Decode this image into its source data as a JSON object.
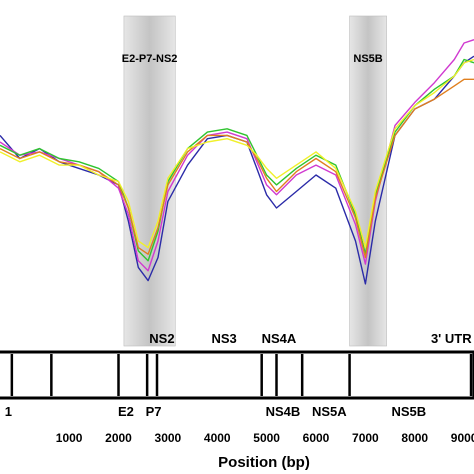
{
  "chart_data": {
    "type": "line",
    "xlabel": "Position (bp)",
    "xlim": [
      -400,
      9200
    ],
    "ylim": [
      0,
      1
    ],
    "x_ticks": [
      1000,
      2000,
      3000,
      4000,
      5000,
      6000,
      7000,
      8000,
      9000
    ],
    "x_tick_labels": [
      "1000",
      "2000",
      "3000",
      "4000",
      "5000",
      "6000",
      "7000",
      "8000",
      "9000"
    ],
    "highlight_bands": [
      {
        "label": "E2-P7-NS2",
        "x_start": 2110,
        "x_end": 3150
      },
      {
        "label": "NS5B",
        "x_start": 6680,
        "x_end": 7430
      }
    ],
    "genome_boundaries": [
      -160,
      640,
      2000,
      2580,
      2780,
      4900,
      5200,
      5720,
      6680,
      9140
    ],
    "gene_labels_top": [
      {
        "text": "NS2",
        "x": 2880
      },
      {
        "text": "NS3",
        "x": 4140
      },
      {
        "text": "NS4A",
        "x": 5250
      },
      {
        "text": "3' UTR",
        "x": 8740
      }
    ],
    "gene_labels_bottom": [
      {
        "text": "1",
        "x": -230
      },
      {
        "text": "E2",
        "x": 2150
      },
      {
        "text": "P7",
        "x": 2710
      },
      {
        "text": "NS4B",
        "x": 5330
      },
      {
        "text": "NS5A",
        "x": 6270
      },
      {
        "text": "NS5B",
        "x": 7880
      }
    ],
    "series": [
      {
        "color": "#2b2ba8",
        "x": [
          -400,
          0,
          400,
          800,
          1200,
          1600,
          2000,
          2200,
          2400,
          2600,
          2800,
          3000,
          3400,
          3800,
          4200,
          4600,
          4800,
          5000,
          5200,
          5600,
          6000,
          6400,
          6800,
          7000,
          7200,
          7600,
          8000,
          8400,
          8800,
          9000,
          9200
        ],
        "y": [
          0.62,
          0.55,
          0.58,
          0.54,
          0.52,
          0.5,
          0.47,
          0.36,
          0.22,
          0.18,
          0.25,
          0.42,
          0.53,
          0.61,
          0.62,
          0.6,
          0.52,
          0.44,
          0.4,
          0.45,
          0.5,
          0.46,
          0.3,
          0.17,
          0.36,
          0.62,
          0.7,
          0.73,
          0.8,
          0.84,
          0.86
        ]
      },
      {
        "color": "#d03ad0",
        "x": [
          -400,
          0,
          400,
          800,
          1200,
          1600,
          2000,
          2200,
          2400,
          2600,
          2800,
          3000,
          3400,
          3800,
          4200,
          4600,
          4800,
          5000,
          5200,
          5600,
          6000,
          6400,
          6800,
          7000,
          7200,
          7600,
          8000,
          8400,
          8800,
          9000,
          9200
        ],
        "y": [
          0.6,
          0.56,
          0.57,
          0.55,
          0.53,
          0.51,
          0.46,
          0.38,
          0.24,
          0.21,
          0.3,
          0.45,
          0.56,
          0.62,
          0.63,
          0.61,
          0.54,
          0.47,
          0.44,
          0.5,
          0.53,
          0.5,
          0.35,
          0.23,
          0.42,
          0.65,
          0.72,
          0.78,
          0.85,
          0.9,
          0.91
        ]
      },
      {
        "color": "#2fc42f",
        "x": [
          -400,
          0,
          400,
          800,
          1200,
          1600,
          2000,
          2200,
          2400,
          2600,
          2800,
          3000,
          3400,
          3800,
          4200,
          4600,
          4800,
          5000,
          5200,
          5600,
          6000,
          6400,
          6800,
          7000,
          7200,
          7600,
          8000,
          8400,
          8800,
          9000,
          9200
        ],
        "y": [
          0.59,
          0.56,
          0.58,
          0.55,
          0.54,
          0.52,
          0.48,
          0.4,
          0.27,
          0.24,
          0.33,
          0.48,
          0.58,
          0.63,
          0.64,
          0.62,
          0.56,
          0.5,
          0.47,
          0.52,
          0.56,
          0.53,
          0.38,
          0.26,
          0.44,
          0.63,
          0.71,
          0.76,
          0.8,
          0.85,
          0.84
        ]
      },
      {
        "color": "#e07f1e",
        "x": [
          -400,
          0,
          400,
          800,
          1200,
          1600,
          2000,
          2200,
          2400,
          2600,
          2800,
          3000,
          3400,
          3800,
          4200,
          4600,
          4800,
          5000,
          5200,
          5600,
          6000,
          6400,
          6800,
          7000,
          7200,
          7600,
          8000,
          8400,
          8800,
          9000,
          9200
        ],
        "y": [
          0.58,
          0.55,
          0.57,
          0.54,
          0.53,
          0.51,
          0.47,
          0.4,
          0.28,
          0.26,
          0.34,
          0.47,
          0.57,
          0.62,
          0.62,
          0.6,
          0.55,
          0.49,
          0.45,
          0.51,
          0.55,
          0.51,
          0.37,
          0.25,
          0.43,
          0.62,
          0.7,
          0.73,
          0.77,
          0.79,
          0.79
        ]
      },
      {
        "color": "#f0f02a",
        "x": [
          -400,
          0,
          400,
          800,
          1200,
          1600,
          2000,
          2200,
          2400,
          2600,
          2800,
          3000,
          3400,
          3800,
          4200,
          4600,
          4800,
          5000,
          5200,
          5600,
          6000,
          6400,
          6800,
          7000,
          7200,
          7600,
          8000,
          8400,
          8800,
          9000,
          9200
        ],
        "y": [
          0.57,
          0.54,
          0.56,
          0.53,
          0.53,
          0.5,
          0.48,
          0.42,
          0.3,
          0.28,
          0.36,
          0.49,
          0.58,
          0.6,
          0.61,
          0.59,
          0.56,
          0.52,
          0.49,
          0.53,
          0.57,
          0.52,
          0.39,
          0.28,
          0.45,
          0.64,
          0.71,
          0.75,
          0.8,
          0.84,
          0.85
        ]
      }
    ]
  }
}
